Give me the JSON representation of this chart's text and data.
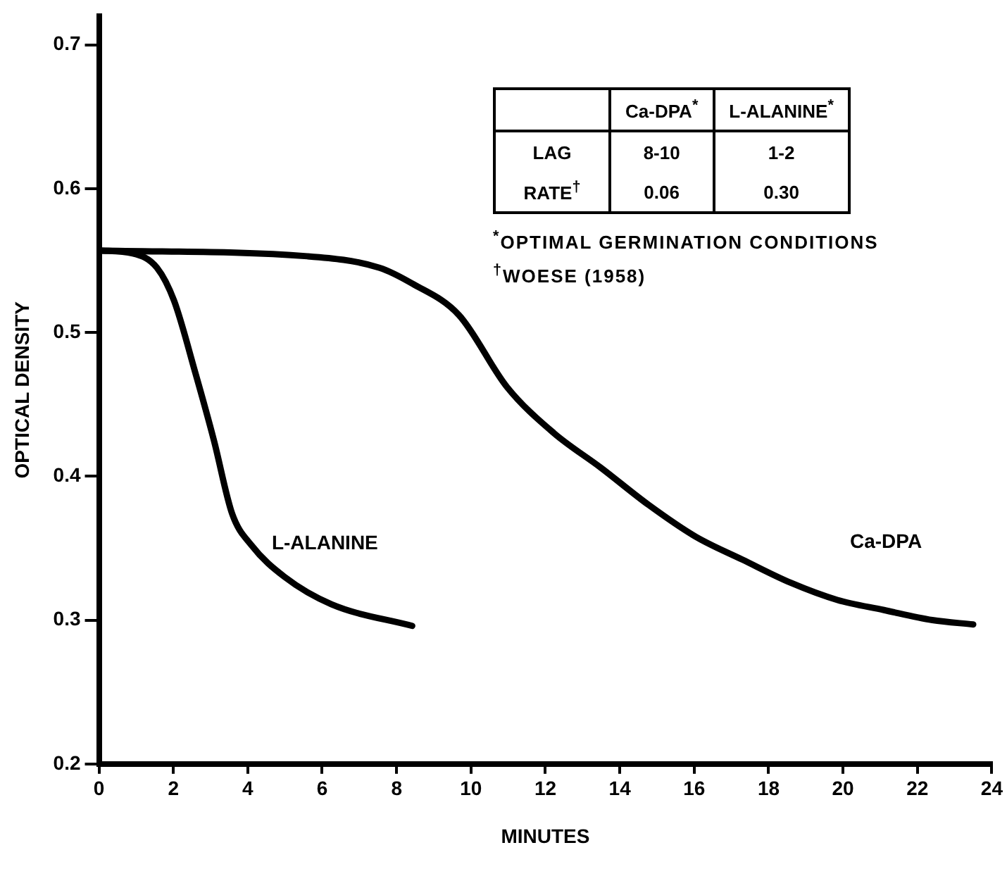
{
  "chart_data": {
    "type": "line",
    "xlabel": "MINUTES",
    "ylabel": "OPTICAL DENSITY",
    "xlim": [
      0,
      24
    ],
    "xticks": [
      0,
      2,
      4,
      6,
      8,
      10,
      12,
      14,
      16,
      18,
      20,
      22,
      24
    ],
    "ylim": [
      0.2,
      0.72
    ],
    "yticks": [
      0.2,
      0.3,
      0.4,
      0.5,
      0.6,
      0.7
    ],
    "grid": false,
    "legend": false,
    "marker": "none",
    "line_style": "solid",
    "series": [
      {
        "name": "L-ALANINE",
        "color": "#000000",
        "x": [
          0,
          0.91,
          1.56,
          2.02,
          2.59,
          3.09,
          3.58,
          4.1,
          4.99,
          6.25,
          8.42
        ],
        "values": [
          0.557,
          0.555,
          0.545,
          0.522,
          0.472,
          0.425,
          0.374,
          0.352,
          0.33,
          0.311,
          0.296
        ]
      },
      {
        "name": "Ca-DPA",
        "color": "#000000",
        "x": [
          0,
          5.6,
          7.54,
          8.42,
          9.68,
          10.97,
          12.23,
          13.49,
          14.78,
          16.04,
          17.3,
          18.59,
          19.85,
          21.1,
          22.4,
          23.5
        ],
        "values": [
          0.557,
          0.553,
          0.545,
          0.534,
          0.512,
          0.462,
          0.43,
          0.406,
          0.38,
          0.358,
          0.342,
          0.326,
          0.314,
          0.307,
          0.3,
          0.297
        ]
      }
    ],
    "annotations": [
      "Ca-DPA$^{*}$",
      "L-ALANINE$^{*}$",
      "LAG",
      "8-10",
      "1-2",
      "RATE$^{†}$",
      "0.06",
      "0.30",
      "$^{*}$OPTIMAL GERMINATION CONDITIONS",
      "$^{†}$WOESE (1958)"
    ]
  }
}
